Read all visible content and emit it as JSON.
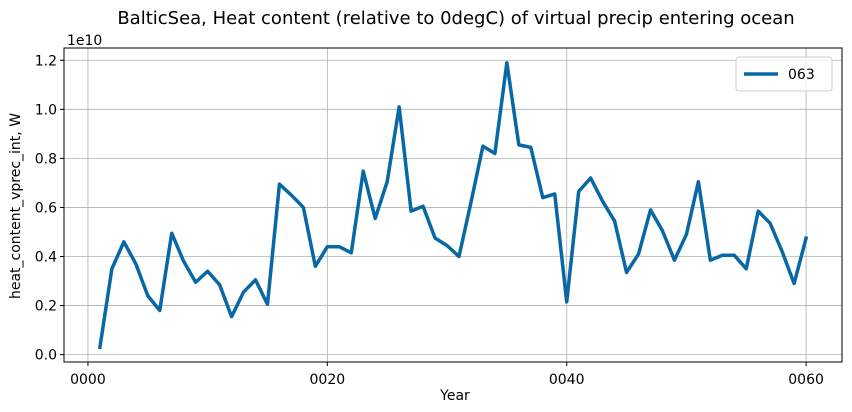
{
  "chart_data": {
    "type": "line",
    "title": "BalticSea, Heat content (relative to 0degC) of virtual precip entering ocean",
    "xlabel": "Year",
    "ylabel": "heat_content_vprec_int, W",
    "y_offset_label": "1e10",
    "y_scale": 10000000000,
    "xlim": [
      -2,
      63
    ],
    "ylim": [
      -0.03,
      1.25
    ],
    "xticks": [
      0,
      20,
      40,
      60
    ],
    "xtick_labels": [
      "0000",
      "0020",
      "0040",
      "0060"
    ],
    "yticks": [
      0.0,
      0.2,
      0.4,
      0.6,
      0.8,
      1.0,
      1.2
    ],
    "ytick_labels": [
      "0.0",
      "0.2",
      "0.4",
      "0.6",
      "0.8",
      "1.0",
      "1.2"
    ],
    "grid": true,
    "legend_position": "top-right",
    "series": [
      {
        "name": "063",
        "color": "#0868a6",
        "x": [
          1,
          2,
          3,
          4,
          5,
          6,
          7,
          8,
          9,
          10,
          11,
          12,
          13,
          14,
          15,
          16,
          17,
          18,
          19,
          20,
          21,
          22,
          23,
          24,
          25,
          26,
          27,
          28,
          29,
          30,
          31,
          32,
          33,
          34,
          35,
          36,
          37,
          38,
          39,
          40,
          41,
          42,
          43,
          44,
          45,
          46,
          47,
          48,
          49,
          50,
          51,
          52,
          53,
          54,
          55,
          56,
          57,
          58,
          59,
          60
        ],
        "values": [
          0.03,
          0.35,
          0.46,
          0.37,
          0.24,
          0.18,
          0.495,
          0.38,
          0.295,
          0.34,
          0.285,
          0.155,
          0.255,
          0.305,
          0.205,
          0.695,
          0.65,
          0.6,
          0.36,
          0.44,
          0.44,
          0.415,
          0.748,
          0.555,
          0.705,
          1.01,
          0.585,
          0.605,
          0.475,
          0.445,
          0.4,
          0.62,
          0.85,
          0.82,
          1.19,
          0.855,
          0.845,
          0.64,
          0.655,
          0.215,
          0.665,
          0.72,
          0.625,
          0.545,
          0.335,
          0.41,
          0.59,
          0.505,
          0.385,
          0.49,
          0.705,
          0.385,
          0.405,
          0.405,
          0.35,
          0.585,
          0.535,
          0.42,
          0.29,
          0.475
        ]
      }
    ]
  }
}
